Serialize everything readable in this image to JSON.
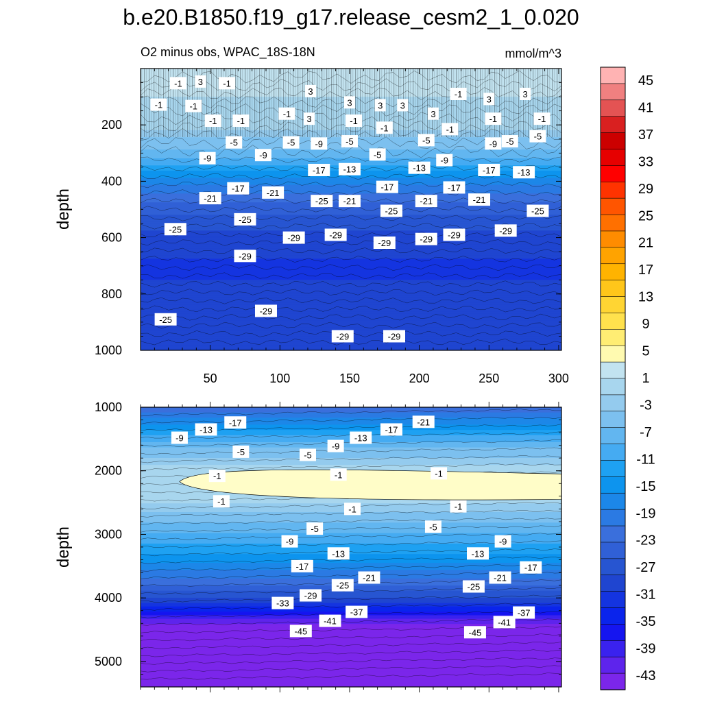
{
  "title": "b.e20.B1850.f19_g17.release_cesm2_1_0.020",
  "subtitle_left": "O2 minus obs, WPAC_18S-18N",
  "subtitle_right": "mmol/m^3",
  "colorbar": {
    "labels": [
      "45",
      "41",
      "37",
      "33",
      "29",
      "25",
      "21",
      "17",
      "13",
      "9",
      "5",
      "1",
      "-3",
      "-7",
      "-11",
      "-15",
      "-19",
      "-23",
      "-27",
      "-31",
      "-35",
      "-39",
      "-43"
    ],
    "colors": [
      "#ffb3b3",
      "#f08080",
      "#e45353",
      "#d92020",
      "#cc0000",
      "#e60000",
      "#ff0000",
      "#ff3300",
      "#ff5500",
      "#ff7000",
      "#ff8c00",
      "#ffa300",
      "#ffb300",
      "#ffc61a",
      "#ffd533",
      "#ffe14d",
      "#ffed73",
      "#fffab0",
      "#c2e3f0",
      "#a8d6ee",
      "#94cbee",
      "#7cc0ef",
      "#62b6f0",
      "#45abf2",
      "#1ea1f2",
      "#0d94ee",
      "#1c87e8",
      "#2b7ae3",
      "#3a6fdc",
      "#3060d6",
      "#2755d1",
      "#1f45d0",
      "#1434e0",
      "#0a24ec",
      "#1515f0",
      "#3a22ee",
      "#5e24ec",
      "#7b26ea"
    ]
  },
  "chart_data": [
    {
      "type": "heatmap",
      "panel": "upper",
      "ylabel": "depth",
      "xlim": [
        0,
        302
      ],
      "ylim": [
        1000,
        0
      ],
      "x_ticks": [
        50,
        100,
        150,
        200,
        250,
        300
      ],
      "y_ticks": [
        200,
        400,
        600,
        800,
        1000
      ],
      "depth_profile": [
        {
          "depth": 0,
          "value": 3
        },
        {
          "depth": 100,
          "value": 1
        },
        {
          "depth": 200,
          "value": 1
        },
        {
          "depth": 230,
          "value": -3
        },
        {
          "depth": 300,
          "value": -7
        },
        {
          "depth": 360,
          "value": -13
        },
        {
          "depth": 420,
          "value": -19
        },
        {
          "depth": 500,
          "value": -25
        },
        {
          "depth": 600,
          "value": -29
        },
        {
          "depth": 700,
          "value": -31
        },
        {
          "depth": 800,
          "value": -30
        },
        {
          "depth": 1000,
          "value": -29
        }
      ],
      "contour_labels": [
        {
          "x": 27,
          "y": 52,
          "text": "-1"
        },
        {
          "x": 43,
          "y": 46,
          "text": "3"
        },
        {
          "x": 62,
          "y": 52,
          "text": "-1"
        },
        {
          "x": 13,
          "y": 128,
          "text": "-1"
        },
        {
          "x": 38,
          "y": 133,
          "text": "-1"
        },
        {
          "x": 122,
          "y": 80,
          "text": "3"
        },
        {
          "x": 150,
          "y": 120,
          "text": "3"
        },
        {
          "x": 172,
          "y": 130,
          "text": "3"
        },
        {
          "x": 188,
          "y": 130,
          "text": "3"
        },
        {
          "x": 210,
          "y": 160,
          "text": "3"
        },
        {
          "x": 228,
          "y": 90,
          "text": "-1"
        },
        {
          "x": 250,
          "y": 108,
          "text": "3"
        },
        {
          "x": 276,
          "y": 90,
          "text": "3"
        },
        {
          "x": 105,
          "y": 160,
          "text": "-1"
        },
        {
          "x": 121,
          "y": 178,
          "text": "3"
        },
        {
          "x": 52,
          "y": 185,
          "text": "-1"
        },
        {
          "x": 72,
          "y": 185,
          "text": "-1"
        },
        {
          "x": 153,
          "y": 185,
          "text": "-1"
        },
        {
          "x": 175,
          "y": 210,
          "text": "-1"
        },
        {
          "x": 222,
          "y": 215,
          "text": "-1"
        },
        {
          "x": 253,
          "y": 178,
          "text": "-1"
        },
        {
          "x": 288,
          "y": 178,
          "text": "-1"
        },
        {
          "x": 67,
          "y": 262,
          "text": "-5"
        },
        {
          "x": 108,
          "y": 262,
          "text": "-5"
        },
        {
          "x": 150,
          "y": 258,
          "text": "-5"
        },
        {
          "x": 205,
          "y": 254,
          "text": "-5"
        },
        {
          "x": 265,
          "y": 258,
          "text": "-5"
        },
        {
          "x": 285,
          "y": 240,
          "text": "-5"
        },
        {
          "x": 170,
          "y": 305,
          "text": "-5"
        },
        {
          "x": 48,
          "y": 318,
          "text": "-9"
        },
        {
          "x": 88,
          "y": 307,
          "text": "-9"
        },
        {
          "x": 128,
          "y": 266,
          "text": "-9"
        },
        {
          "x": 218,
          "y": 325,
          "text": "-9"
        },
        {
          "x": 253,
          "y": 266,
          "text": "-9"
        },
        {
          "x": 128,
          "y": 360,
          "text": "-17"
        },
        {
          "x": 150,
          "y": 357,
          "text": "-13"
        },
        {
          "x": 200,
          "y": 352,
          "text": "-13"
        },
        {
          "x": 250,
          "y": 360,
          "text": "-17"
        },
        {
          "x": 275,
          "y": 368,
          "text": "-13"
        },
        {
          "x": 70,
          "y": 425,
          "text": "-17"
        },
        {
          "x": 177,
          "y": 420,
          "text": "-17"
        },
        {
          "x": 225,
          "y": 422,
          "text": "-17"
        },
        {
          "x": 50,
          "y": 460,
          "text": "-21"
        },
        {
          "x": 95,
          "y": 440,
          "text": "-21"
        },
        {
          "x": 130,
          "y": 470,
          "text": "-25"
        },
        {
          "x": 150,
          "y": 470,
          "text": "-21"
        },
        {
          "x": 205,
          "y": 470,
          "text": "-21"
        },
        {
          "x": 243,
          "y": 465,
          "text": "-21"
        },
        {
          "x": 180,
          "y": 505,
          "text": "-25"
        },
        {
          "x": 75,
          "y": 535,
          "text": "-25"
        },
        {
          "x": 285,
          "y": 505,
          "text": "-25"
        },
        {
          "x": 25,
          "y": 570,
          "text": "-25"
        },
        {
          "x": 110,
          "y": 600,
          "text": "-29"
        },
        {
          "x": 140,
          "y": 590,
          "text": "-29"
        },
        {
          "x": 175,
          "y": 618,
          "text": "-29"
        },
        {
          "x": 205,
          "y": 605,
          "text": "-29"
        },
        {
          "x": 225,
          "y": 590,
          "text": "-29"
        },
        {
          "x": 262,
          "y": 575,
          "text": "-29"
        },
        {
          "x": 75,
          "y": 665,
          "text": "-29"
        },
        {
          "x": 90,
          "y": 860,
          "text": "-29"
        },
        {
          "x": 18,
          "y": 890,
          "text": "-25"
        },
        {
          "x": 145,
          "y": 950,
          "text": "-29"
        },
        {
          "x": 182,
          "y": 950,
          "text": "-29"
        }
      ]
    },
    {
      "type": "heatmap",
      "panel": "lower",
      "ylabel": "depth",
      "xlim": [
        0,
        302
      ],
      "ylim": [
        5400,
        1000
      ],
      "y_ticks": [
        1000,
        2000,
        3000,
        4000,
        5000
      ],
      "depth_profile": [
        {
          "depth": 1000,
          "value": -23
        },
        {
          "depth": 1300,
          "value": -15
        },
        {
          "depth": 1600,
          "value": -7
        },
        {
          "depth": 1850,
          "value": -3
        },
        {
          "depth": 2000,
          "value": 1
        },
        {
          "depth": 2400,
          "value": 1
        },
        {
          "depth": 2600,
          "value": -3
        },
        {
          "depth": 3000,
          "value": -9
        },
        {
          "depth": 3400,
          "value": -15
        },
        {
          "depth": 3800,
          "value": -23
        },
        {
          "depth": 4100,
          "value": -31
        },
        {
          "depth": 4300,
          "value": -39
        },
        {
          "depth": 4500,
          "value": -45
        },
        {
          "depth": 5400,
          "value": -45
        }
      ],
      "contour_labels": [
        {
          "x": 28,
          "y": 1480,
          "text": "-9"
        },
        {
          "x": 47,
          "y": 1350,
          "text": "-13"
        },
        {
          "x": 68,
          "y": 1240,
          "text": "-17"
        },
        {
          "x": 72,
          "y": 1700,
          "text": "-5"
        },
        {
          "x": 120,
          "y": 1750,
          "text": "-5"
        },
        {
          "x": 140,
          "y": 1610,
          "text": "-9"
        },
        {
          "x": 158,
          "y": 1480,
          "text": "-13"
        },
        {
          "x": 180,
          "y": 1350,
          "text": "-17"
        },
        {
          "x": 203,
          "y": 1230,
          "text": "-21"
        },
        {
          "x": 55,
          "y": 2080,
          "text": "-1"
        },
        {
          "x": 142,
          "y": 2060,
          "text": "-1"
        },
        {
          "x": 214,
          "y": 2040,
          "text": "-1"
        },
        {
          "x": 58,
          "y": 2480,
          "text": "-1"
        },
        {
          "x": 152,
          "y": 2600,
          "text": "-1"
        },
        {
          "x": 228,
          "y": 2560,
          "text": "-1"
        },
        {
          "x": 125,
          "y": 2910,
          "text": "-5"
        },
        {
          "x": 210,
          "y": 2880,
          "text": "-5"
        },
        {
          "x": 107,
          "y": 3110,
          "text": "-9"
        },
        {
          "x": 260,
          "y": 3110,
          "text": "-9"
        },
        {
          "x": 142,
          "y": 3300,
          "text": "-13"
        },
        {
          "x": 242,
          "y": 3300,
          "text": "-13"
        },
        {
          "x": 116,
          "y": 3500,
          "text": "-17"
        },
        {
          "x": 280,
          "y": 3520,
          "text": "-17"
        },
        {
          "x": 164,
          "y": 3680,
          "text": "-21"
        },
        {
          "x": 258,
          "y": 3680,
          "text": "-21"
        },
        {
          "x": 145,
          "y": 3800,
          "text": "-25"
        },
        {
          "x": 239,
          "y": 3820,
          "text": "-25"
        },
        {
          "x": 122,
          "y": 3960,
          "text": "-29"
        },
        {
          "x": 102,
          "y": 4080,
          "text": "-33"
        },
        {
          "x": 155,
          "y": 4220,
          "text": "-37"
        },
        {
          "x": 275,
          "y": 4230,
          "text": "-37"
        },
        {
          "x": 136,
          "y": 4360,
          "text": "-41"
        },
        {
          "x": 261,
          "y": 4380,
          "text": "-41"
        },
        {
          "x": 115,
          "y": 4520,
          "text": "-45"
        },
        {
          "x": 240,
          "y": 4540,
          "text": "-45"
        }
      ]
    }
  ]
}
